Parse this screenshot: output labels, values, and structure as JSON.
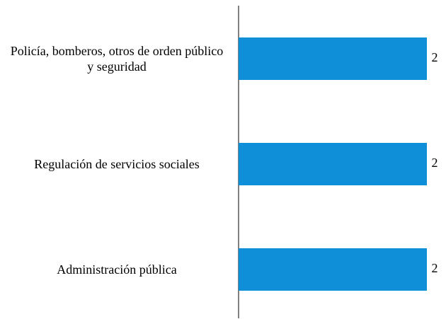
{
  "chart_data": {
    "type": "bar",
    "orientation": "horizontal",
    "categories": [
      "Policía, bomberos, otros de orden público y seguridad",
      "Regulación de servicios sociales",
      "Administración pública"
    ],
    "values": [
      2,
      2,
      2
    ],
    "color": "#0f8fd8"
  }
}
